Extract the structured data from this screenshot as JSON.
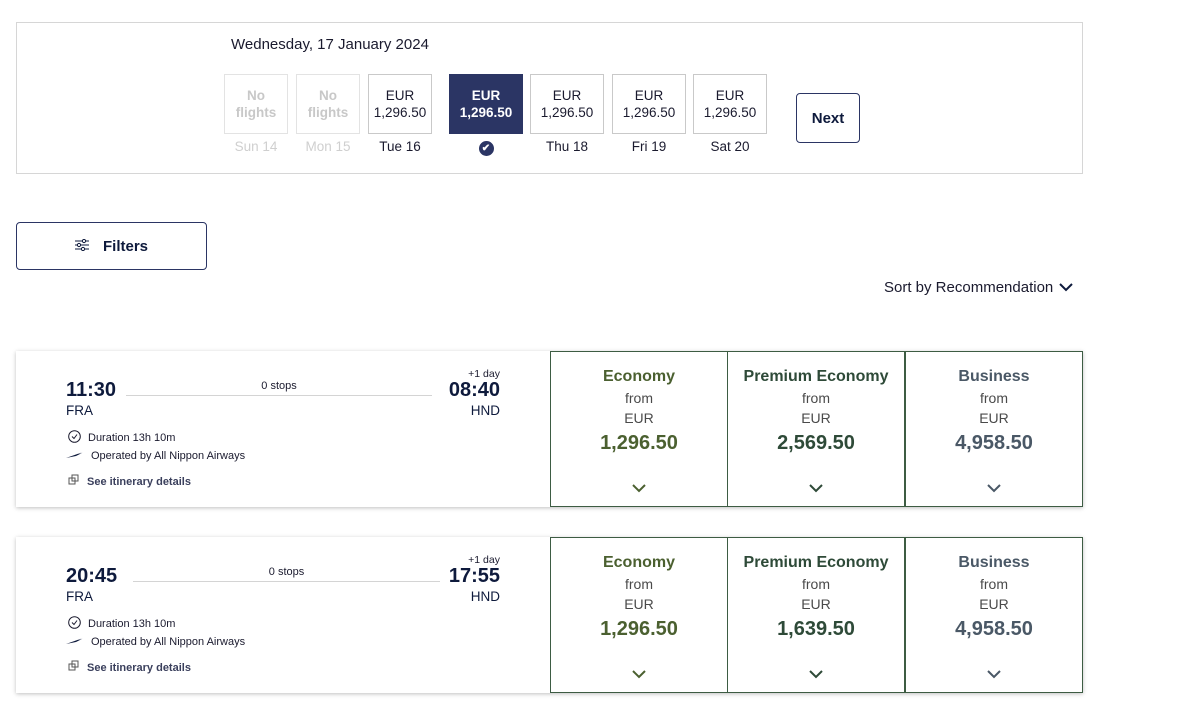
{
  "date_selector": {
    "title": "Wednesday, 17 January 2024",
    "days": [
      {
        "label": "Sun 14",
        "line1": "No",
        "line2": "flights",
        "state": "disabled"
      },
      {
        "label": "Mon 15",
        "line1": "No",
        "line2": "flights",
        "state": "disabled"
      },
      {
        "label": "Tue 16",
        "line1": "EUR",
        "line2": "1,296.50",
        "state": "normal"
      },
      {
        "label": "",
        "line1": "EUR",
        "line2": "1,296.50",
        "state": "selected"
      },
      {
        "label": "Thu 18",
        "line1": "EUR",
        "line2": "1,296.50",
        "state": "normal"
      },
      {
        "label": "Fri 19",
        "line1": "EUR",
        "line2": "1,296.50",
        "state": "normal"
      },
      {
        "label": "Sat 20",
        "line1": "EUR",
        "line2": "1,296.50",
        "state": "normal"
      }
    ],
    "next_label": "Next"
  },
  "filters_label": "Filters",
  "sort_label": "Sort by Recommendation",
  "colors": {
    "selected": "#2b3564",
    "economy": "#4b6030",
    "premium": "#2e4a38",
    "business": "#4a5866",
    "fare_border": "#3d5c43"
  },
  "flights": [
    {
      "depart": "11:30",
      "from": "FRA",
      "arrive": "08:40",
      "to": "HND",
      "day_offset": "+1 day",
      "stops": "0 stops",
      "duration": "Duration 13h 10m",
      "operator": "Operated by All Nippon Airways",
      "details": "See itinerary details",
      "fares": [
        {
          "cls": "Economy",
          "from": "from",
          "cur": "EUR",
          "price": "1,296.50"
        },
        {
          "cls": "Premium Economy",
          "from": "from",
          "cur": "EUR",
          "price": "2,569.50"
        },
        {
          "cls": "Business",
          "from": "from",
          "cur": "EUR",
          "price": "4,958.50"
        }
      ]
    },
    {
      "depart": "20:45",
      "from": "FRA",
      "arrive": "17:55",
      "to": "HND",
      "day_offset": "+1 day",
      "stops": "0 stops",
      "duration": "Duration 13h 10m",
      "operator": "Operated by All Nippon Airways",
      "details": "See itinerary details",
      "fares": [
        {
          "cls": "Economy",
          "from": "from",
          "cur": "EUR",
          "price": "1,296.50"
        },
        {
          "cls": "Premium Economy",
          "from": "from",
          "cur": "EUR",
          "price": "1,639.50"
        },
        {
          "cls": "Business",
          "from": "from",
          "cur": "EUR",
          "price": "4,958.50"
        }
      ]
    }
  ]
}
